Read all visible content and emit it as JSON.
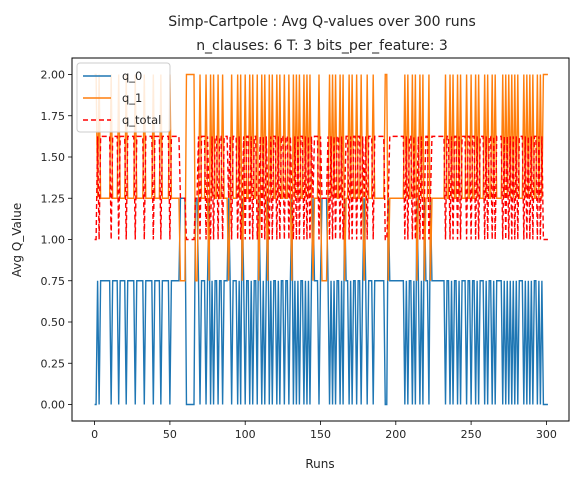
{
  "chart_data": {
    "type": "line",
    "title": "Simp-Cartpole : Avg Q-values over 300 runs",
    "subtitle": "n_clauses: 6 T: 3 bits_per_feature: 3",
    "xlabel": "Runs",
    "ylabel": "Avg Q_Value",
    "xlim": [
      -15,
      315
    ],
    "ylim": [
      -0.1,
      2.1
    ],
    "xticks": [
      0,
      50,
      100,
      150,
      200,
      250,
      300
    ],
    "yticks": [
      "0.00",
      "0.25",
      "0.50",
      "0.75",
      "1.00",
      "1.25",
      "1.50",
      "1.75",
      "2.00"
    ],
    "grid": false,
    "legend_position": "top-left",
    "series": [
      {
        "name": "q_0",
        "color": "#1f77b4",
        "style": "solid",
        "values": [
          0,
          0,
          0.75,
          0,
          0.75,
          0.75,
          0.75,
          0.75,
          0.75,
          0.75,
          0.75,
          0,
          0.75,
          0.75,
          0.75,
          0.75,
          0,
          0.75,
          0.75,
          0.75,
          0.75,
          0,
          0.75,
          0.75,
          0.75,
          0.75,
          0.75,
          0,
          0.75,
          0.75,
          0.75,
          0.75,
          0.75,
          0,
          0.75,
          0.75,
          0.75,
          0.75,
          0.75,
          0,
          0.75,
          0.75,
          0.75,
          0.75,
          0,
          0.75,
          0.75,
          0.75,
          0.75,
          0.75,
          0,
          0.75,
          0.75,
          0.75,
          0.75,
          0.75,
          0.75,
          1.25,
          1.25,
          1.25,
          1.25,
          0,
          0,
          0,
          0,
          0,
          0,
          1.25,
          1.25,
          0.75,
          0,
          0.75,
          0.75,
          0.75,
          0,
          0.75,
          1.25,
          0,
          0.75,
          0,
          0.75,
          0.75,
          0,
          0.75,
          0.75,
          0,
          0.75,
          0.75,
          0.75,
          1.25,
          0.75,
          0,
          0.75,
          0.75,
          0.75,
          0,
          0.75,
          0,
          1.25,
          0.75,
          0,
          0.75,
          0.75,
          0,
          0.75,
          0,
          0.75,
          0.75,
          0,
          1.25,
          0.75,
          0,
          0.75,
          0,
          0.75,
          1.25,
          0,
          0.75,
          0,
          0.75,
          0.75,
          0,
          0.75,
          0,
          0.75,
          0.75,
          0,
          0.75,
          0.75,
          0,
          0.75,
          1.25,
          0,
          0.75,
          0,
          0.75,
          0,
          0.75,
          0.75,
          0,
          0.75,
          0,
          0.75,
          0,
          0.75,
          1.25,
          0.75,
          0.75,
          0.75,
          0,
          0.75,
          1.25,
          1.25,
          1.25,
          1.25,
          0.75,
          0,
          0.75,
          0,
          0.75,
          0,
          0.75,
          0.75,
          0,
          0.75,
          0,
          1.25,
          0.75,
          0.75,
          0,
          0.75,
          0,
          0.75,
          0.75,
          0,
          0.75,
          0.75,
          0,
          0.75,
          1.25,
          0.75,
          0,
          0.75,
          0.75,
          0.75,
          0,
          0.75,
          0.75,
          0.75,
          0.75,
          0.75,
          0.75,
          0.75,
          0,
          0,
          1.25,
          0.75,
          0.75,
          0.75,
          0.75,
          0.75,
          0.75,
          0.75,
          0.75,
          0.75,
          0.75,
          0,
          0.75,
          0,
          0.75,
          0.75,
          0,
          0.75,
          0,
          1.25,
          0.75,
          0,
          0.75,
          0,
          1.25,
          0.75,
          0.75,
          0,
          1.25,
          0.75,
          0.75,
          0.75,
          0.75,
          0.75,
          0.75,
          0.75,
          0.75,
          0.75,
          0,
          0.75,
          0.75,
          0,
          0.75,
          0,
          0.75,
          0.75,
          0,
          0.75,
          0,
          0.75,
          0.75,
          0.75,
          0,
          0.75,
          0.75,
          0,
          0.75,
          0.75,
          0,
          0.75,
          0,
          0.75,
          0.75,
          0.75,
          0,
          0.75,
          0,
          0.75,
          0.75,
          0,
          0.75,
          0,
          0.75,
          0.75,
          0.75,
          0.75,
          0,
          0.75,
          0,
          0.75,
          0,
          0.75,
          0,
          0.75,
          0,
          0.75,
          0,
          0.75,
          0.75,
          0.75,
          0,
          0.75,
          0,
          0.75,
          0,
          0.75,
          0,
          0.75,
          0.75,
          0,
          0.75,
          0,
          0.75,
          0,
          0,
          0,
          0
        ]
      },
      {
        "name": "q_1",
        "color": "#ff7f0e",
        "style": "solid",
        "values": [
          2,
          2,
          1.25,
          2,
          1.25,
          1.25,
          1.25,
          1.25,
          1.25,
          1.25,
          1.25,
          2,
          1.25,
          1.25,
          1.25,
          1.25,
          2,
          1.25,
          1.25,
          1.25,
          1.25,
          2,
          1.25,
          1.25,
          1.25,
          1.25,
          1.25,
          2,
          1.25,
          1.25,
          1.25,
          1.25,
          1.25,
          2,
          1.25,
          1.25,
          1.25,
          1.25,
          1.25,
          2,
          1.25,
          1.25,
          1.25,
          1.25,
          2,
          1.25,
          1.25,
          1.25,
          1.25,
          1.25,
          2,
          1.25,
          1.25,
          1.25,
          1.25,
          1.25,
          1.25,
          0.75,
          0.75,
          0.75,
          0.75,
          2,
          2,
          2,
          2,
          2,
          2,
          0.75,
          0.75,
          1.25,
          2,
          1.25,
          1.25,
          1.25,
          2,
          1.25,
          0.75,
          2,
          1.25,
          2,
          1.25,
          1.25,
          2,
          1.25,
          1.25,
          2,
          1.25,
          1.25,
          1.25,
          0.75,
          1.25,
          2,
          1.25,
          1.25,
          1.25,
          2,
          1.25,
          2,
          0.75,
          1.25,
          2,
          1.25,
          1.25,
          2,
          1.25,
          2,
          1.25,
          1.25,
          2,
          0.75,
          1.25,
          2,
          1.25,
          2,
          1.25,
          0.75,
          2,
          1.25,
          2,
          1.25,
          1.25,
          2,
          1.25,
          2,
          1.25,
          1.25,
          2,
          1.25,
          1.25,
          2,
          1.25,
          0.75,
          2,
          1.25,
          2,
          1.25,
          2,
          1.25,
          1.25,
          2,
          1.25,
          2,
          1.25,
          2,
          1.25,
          0.75,
          1.25,
          1.25,
          1.25,
          2,
          1.25,
          0.75,
          0.75,
          0.75,
          0.75,
          1.25,
          2,
          1.25,
          2,
          1.25,
          2,
          1.25,
          1.25,
          2,
          1.25,
          2,
          0.75,
          1.25,
          1.25,
          2,
          1.25,
          2,
          1.25,
          1.25,
          2,
          1.25,
          1.25,
          2,
          1.25,
          0.75,
          1.25,
          2,
          1.25,
          1.25,
          1.25,
          2,
          1.25,
          1.25,
          1.25,
          1.25,
          1.25,
          1.25,
          1.25,
          2,
          2,
          0.75,
          1.25,
          1.25,
          1.25,
          1.25,
          1.25,
          1.25,
          1.25,
          1.25,
          1.25,
          1.25,
          2,
          1.25,
          2,
          1.25,
          1.25,
          2,
          1.25,
          2,
          0.75,
          1.25,
          2,
          1.25,
          2,
          0.75,
          1.25,
          1.25,
          2,
          0.75,
          1.25,
          1.25,
          1.25,
          1.25,
          1.25,
          1.25,
          1.25,
          1.25,
          1.25,
          2,
          1.25,
          1.25,
          2,
          1.25,
          2,
          1.25,
          1.25,
          2,
          1.25,
          2,
          1.25,
          1.25,
          1.25,
          2,
          1.25,
          1.25,
          2,
          1.25,
          1.25,
          2,
          1.25,
          2,
          1.25,
          1.25,
          1.25,
          2,
          1.25,
          2,
          1.25,
          1.25,
          2,
          1.25,
          2,
          1.25,
          1.25,
          1.25,
          1.25,
          2,
          1.25,
          2,
          1.25,
          2,
          1.25,
          2,
          1.25,
          2,
          1.25,
          2,
          1.25,
          1.25,
          1.25,
          2,
          1.25,
          2,
          1.25,
          2,
          1.25,
          2,
          1.25,
          1.25,
          2,
          1.25,
          2,
          1.25,
          2,
          2,
          2,
          2
        ]
      },
      {
        "name": "q_total",
        "color": "#ff0000",
        "style": "dashed",
        "values": [
          1,
          1,
          1.625,
          1,
          1.625,
          1.625,
          1.625,
          1.625,
          1.625,
          1.625,
          1.625,
          1,
          1.625,
          1.625,
          1.625,
          1.625,
          1,
          1.625,
          1.625,
          1.625,
          1.625,
          1,
          1.625,
          1.625,
          1.625,
          1.625,
          1.625,
          1,
          1.625,
          1.625,
          1.625,
          1.625,
          1.625,
          1,
          1.625,
          1.625,
          1.625,
          1.625,
          1.625,
          1,
          1.625,
          1.625,
          1.625,
          1.625,
          1,
          1.625,
          1.625,
          1.625,
          1.625,
          1.625,
          1,
          1.625,
          1.625,
          1.625,
          1.625,
          1.625,
          1.625,
          1.25,
          1.25,
          1.25,
          1.25,
          1,
          1,
          1,
          1,
          1,
          1,
          1.25,
          1.25,
          1.625,
          1,
          1.625,
          1.625,
          1.625,
          1,
          1.625,
          1.25,
          1,
          1.625,
          1,
          1.625,
          1.625,
          1,
          1.625,
          1.625,
          1,
          1.625,
          1.625,
          1.625,
          1.25,
          1.625,
          1,
          1.625,
          1.625,
          1.625,
          1,
          1.625,
          1,
          1.25,
          1.625,
          1,
          1.625,
          1.625,
          1,
          1.625,
          1,
          1.625,
          1.625,
          1,
          1.25,
          1.625,
          1,
          1.625,
          1,
          1.625,
          1.25,
          1,
          1.625,
          1,
          1.625,
          1.625,
          1,
          1.625,
          1,
          1.625,
          1.625,
          1,
          1.625,
          1.625,
          1,
          1.625,
          1.25,
          1,
          1.625,
          1,
          1.625,
          1,
          1.625,
          1.625,
          1,
          1.625,
          1,
          1.625,
          1,
          1.625,
          1.25,
          1.625,
          1.625,
          1.625,
          1,
          1.625,
          1.25,
          1.25,
          1.25,
          1.25,
          1.625,
          1,
          1.625,
          1,
          1.625,
          1,
          1.625,
          1.625,
          1,
          1.625,
          1,
          1.25,
          1.625,
          1.625,
          1,
          1.625,
          1,
          1.625,
          1.625,
          1,
          1.625,
          1.625,
          1,
          1.625,
          1.25,
          1.625,
          1,
          1.625,
          1.625,
          1.625,
          1,
          1.625,
          1.625,
          1.625,
          1.625,
          1.625,
          1.625,
          1.625,
          1,
          1,
          1.25,
          1.625,
          1.625,
          1.625,
          1.625,
          1.625,
          1.625,
          1.625,
          1.625,
          1.625,
          1.625,
          1,
          1.625,
          1,
          1.625,
          1.625,
          1,
          1.625,
          1,
          1.25,
          1.625,
          1,
          1.625,
          1,
          1.25,
          1.625,
          1.625,
          1,
          1.25,
          1.625,
          1.625,
          1.625,
          1.625,
          1.625,
          1.625,
          1.625,
          1.625,
          1.625,
          1,
          1.625,
          1.625,
          1,
          1.625,
          1,
          1.625,
          1.625,
          1,
          1.625,
          1,
          1.625,
          1.625,
          1.625,
          1,
          1.625,
          1.625,
          1,
          1.625,
          1.625,
          1,
          1.625,
          1,
          1.625,
          1.625,
          1.625,
          1,
          1.625,
          1,
          1.625,
          1.625,
          1,
          1.625,
          1,
          1.625,
          1.625,
          1.625,
          1.625,
          1,
          1.625,
          1,
          1.625,
          1,
          1.625,
          1,
          1.625,
          1,
          1.625,
          1,
          1.625,
          1.625,
          1.625,
          1,
          1.625,
          1,
          1.625,
          1,
          1.625,
          1,
          1.625,
          1.625,
          1,
          1.625,
          1,
          1.625,
          1,
          1,
          1,
          1
        ]
      }
    ]
  }
}
